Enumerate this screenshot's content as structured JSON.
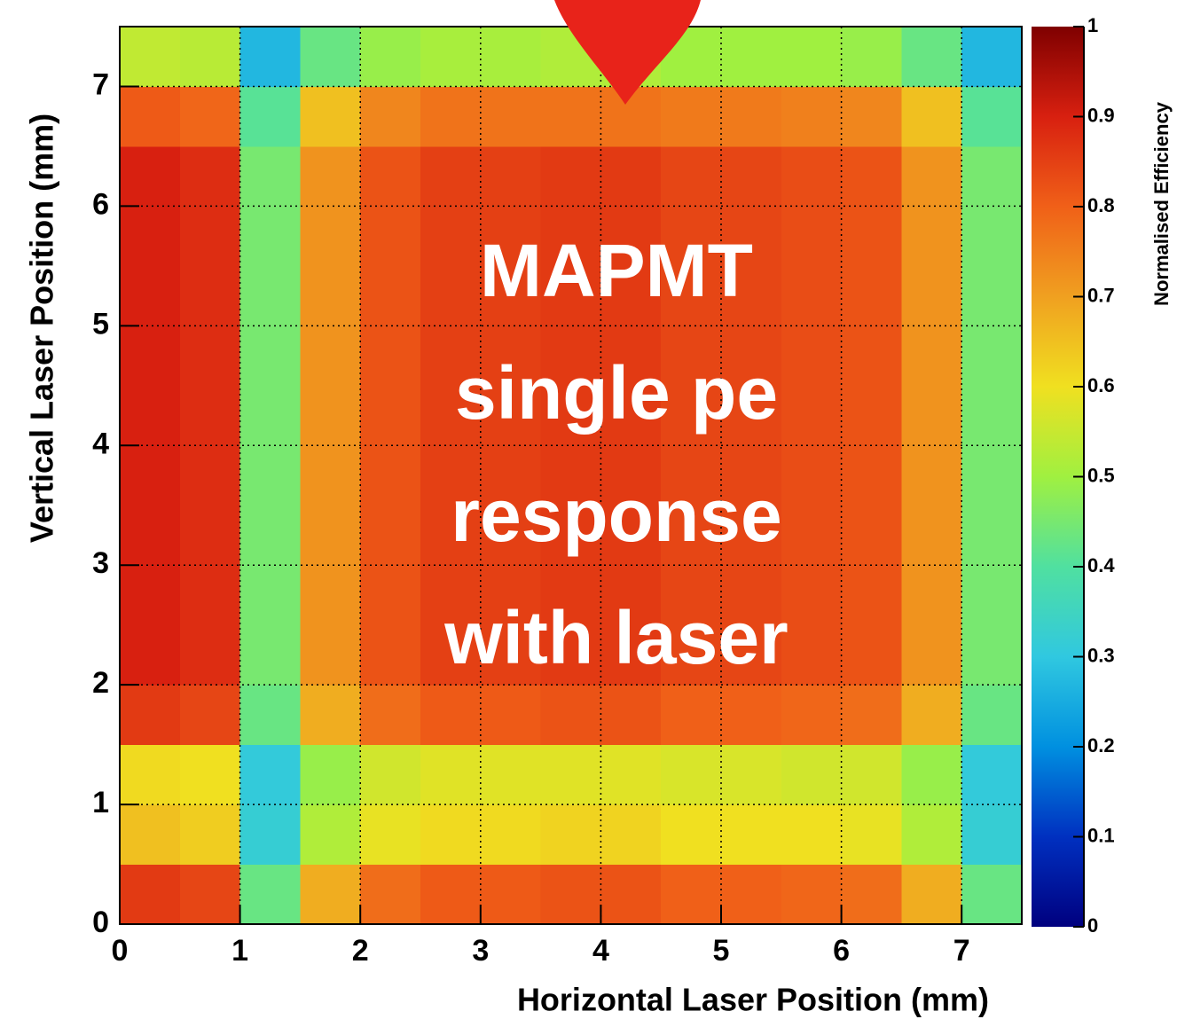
{
  "chart_data": {
    "type": "heatmap",
    "annotation": [
      "MAPMT",
      "single pe",
      "response",
      "with laser"
    ],
    "x_label": "Horizontal Laser Position (mm)",
    "y_label": "Vertical Laser Position (mm)",
    "colorbar_label": "Normalised Efficiency",
    "xbins": [
      0,
      0.5,
      1,
      1.5,
      2,
      2.5,
      3,
      3.5,
      4,
      4.5,
      5,
      5.5,
      6,
      6.5,
      7,
      7.5
    ],
    "ybins": [
      0,
      0.5,
      1,
      1.5,
      2,
      2.5,
      3,
      3.5,
      4,
      4.5,
      5,
      5.5,
      6,
      6.5,
      7,
      7.5
    ],
    "z": [
      [
        0.86,
        0.84,
        0.43,
        0.68,
        0.78,
        0.81,
        0.81,
        0.82,
        0.82,
        0.8,
        0.8,
        0.79,
        0.78,
        0.68,
        0.43
      ],
      [
        0.65,
        0.63,
        0.32,
        0.52,
        0.59,
        0.61,
        0.61,
        0.62,
        0.62,
        0.6,
        0.6,
        0.6,
        0.59,
        0.52,
        0.32
      ],
      [
        0.61,
        0.6,
        0.31,
        0.49,
        0.56,
        0.58,
        0.58,
        0.58,
        0.58,
        0.57,
        0.57,
        0.56,
        0.56,
        0.49,
        0.31
      ],
      [
        0.86,
        0.84,
        0.43,
        0.68,
        0.78,
        0.81,
        0.81,
        0.82,
        0.82,
        0.8,
        0.8,
        0.79,
        0.78,
        0.68,
        0.43
      ],
      [
        0.9,
        0.88,
        0.45,
        0.72,
        0.82,
        0.85,
        0.85,
        0.86,
        0.86,
        0.84,
        0.84,
        0.83,
        0.82,
        0.72,
        0.45
      ],
      [
        0.9,
        0.88,
        0.45,
        0.72,
        0.82,
        0.85,
        0.85,
        0.86,
        0.86,
        0.84,
        0.84,
        0.83,
        0.82,
        0.72,
        0.45
      ],
      [
        0.9,
        0.88,
        0.45,
        0.72,
        0.82,
        0.85,
        0.85,
        0.86,
        0.86,
        0.84,
        0.84,
        0.83,
        0.82,
        0.72,
        0.45
      ],
      [
        0.9,
        0.88,
        0.45,
        0.72,
        0.82,
        0.85,
        0.85,
        0.86,
        0.86,
        0.84,
        0.84,
        0.83,
        0.82,
        0.72,
        0.45
      ],
      [
        0.9,
        0.88,
        0.45,
        0.72,
        0.82,
        0.85,
        0.85,
        0.86,
        0.86,
        0.84,
        0.84,
        0.83,
        0.82,
        0.72,
        0.45
      ],
      [
        0.9,
        0.88,
        0.45,
        0.72,
        0.82,
        0.85,
        0.85,
        0.86,
        0.86,
        0.84,
        0.84,
        0.83,
        0.82,
        0.72,
        0.45
      ],
      [
        0.9,
        0.88,
        0.45,
        0.72,
        0.82,
        0.85,
        0.85,
        0.86,
        0.86,
        0.84,
        0.84,
        0.83,
        0.82,
        0.72,
        0.45
      ],
      [
        0.9,
        0.88,
        0.45,
        0.72,
        0.82,
        0.85,
        0.85,
        0.86,
        0.86,
        0.84,
        0.84,
        0.83,
        0.82,
        0.72,
        0.45
      ],
      [
        0.9,
        0.88,
        0.45,
        0.72,
        0.82,
        0.85,
        0.85,
        0.86,
        0.86,
        0.84,
        0.84,
        0.83,
        0.82,
        0.72,
        0.45
      ],
      [
        0.81,
        0.79,
        0.41,
        0.65,
        0.74,
        0.77,
        0.77,
        0.77,
        0.77,
        0.76,
        0.76,
        0.75,
        0.74,
        0.65,
        0.41
      ],
      [
        0.54,
        0.53,
        0.27,
        0.43,
        0.49,
        0.51,
        0.51,
        0.52,
        0.52,
        0.5,
        0.5,
        0.5,
        0.49,
        0.43,
        0.27
      ]
    ],
    "xlim": [
      0,
      7.5
    ],
    "xticks": [
      0,
      1,
      2,
      3,
      4,
      5,
      6,
      7
    ],
    "ylim": [
      0,
      7.5
    ],
    "yticks": [
      0,
      1,
      2,
      3,
      4,
      5,
      6,
      7
    ],
    "zlim": [
      0,
      1
    ],
    "zticks": [
      0,
      0.1,
      0.2,
      0.3,
      0.4,
      0.5,
      0.6,
      0.7,
      0.8,
      0.9,
      1
    ],
    "colorscale": [
      "#00007f",
      "#0030c0",
      "#0090e0",
      "#30c8e0",
      "#50e0a0",
      "#a0f040",
      "#f0e020",
      "#f0a020",
      "#f06018",
      "#d82010",
      "#7f0000"
    ],
    "grid": true
  }
}
